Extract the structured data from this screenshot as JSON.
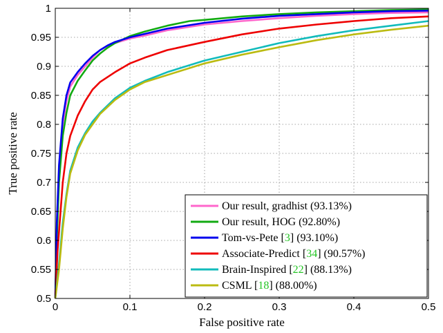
{
  "chart_data": {
    "type": "line",
    "xlabel": "False positive rate",
    "ylabel": "True positive rate",
    "xlim": [
      0,
      0.5
    ],
    "ylim": [
      0.5,
      1
    ],
    "x_ticks": [
      "0",
      "0.1",
      "0.2",
      "0.3",
      "0.4",
      "0.5"
    ],
    "y_ticks": [
      "0.5",
      "0.55",
      "0.6",
      "0.65",
      "0.7",
      "0.75",
      "0.8",
      "0.85",
      "0.9",
      "0.95",
      "1"
    ],
    "grid": true,
    "legend_position": "bottom-right",
    "series": [
      {
        "legend": {
          "pre": "Our result, gradhist",
          "ref": "",
          "post": " (93.13%)"
        },
        "color": "#ff66cc",
        "points": [
          [
            0,
            0.5
          ],
          [
            0.002,
            0.62
          ],
          [
            0.005,
            0.72
          ],
          [
            0.01,
            0.8
          ],
          [
            0.015,
            0.84
          ],
          [
            0.02,
            0.865
          ],
          [
            0.03,
            0.885
          ],
          [
            0.04,
            0.9
          ],
          [
            0.05,
            0.915
          ],
          [
            0.06,
            0.928
          ],
          [
            0.07,
            0.935
          ],
          [
            0.08,
            0.94
          ],
          [
            0.1,
            0.948
          ],
          [
            0.12,
            0.953
          ],
          [
            0.15,
            0.962
          ],
          [
            0.2,
            0.972
          ],
          [
            0.25,
            0.978
          ],
          [
            0.3,
            0.983
          ],
          [
            0.35,
            0.987
          ],
          [
            0.4,
            0.99
          ],
          [
            0.45,
            0.992
          ],
          [
            0.5,
            0.993
          ]
        ]
      },
      {
        "legend": {
          "pre": "Our result, HOG",
          "ref": "",
          "post": " (92.80%)"
        },
        "color": "#11aa11",
        "points": [
          [
            0,
            0.5
          ],
          [
            0.002,
            0.6
          ],
          [
            0.005,
            0.7
          ],
          [
            0.01,
            0.78
          ],
          [
            0.015,
            0.82
          ],
          [
            0.02,
            0.85
          ],
          [
            0.03,
            0.875
          ],
          [
            0.04,
            0.893
          ],
          [
            0.05,
            0.91
          ],
          [
            0.06,
            0.922
          ],
          [
            0.07,
            0.932
          ],
          [
            0.08,
            0.94
          ],
          [
            0.1,
            0.952
          ],
          [
            0.12,
            0.96
          ],
          [
            0.15,
            0.97
          ],
          [
            0.18,
            0.978
          ],
          [
            0.2,
            0.98
          ],
          [
            0.25,
            0.986
          ],
          [
            0.3,
            0.99
          ],
          [
            0.35,
            0.993
          ],
          [
            0.4,
            0.995
          ],
          [
            0.45,
            0.997
          ],
          [
            0.5,
            0.998
          ]
        ]
      },
      {
        "legend": {
          "pre": "Tom-vs-Pete ",
          "ref": "3",
          "post": " (93.10%)"
        },
        "color": "#0000ee",
        "points": [
          [
            0,
            0.5
          ],
          [
            0.002,
            0.63
          ],
          [
            0.005,
            0.73
          ],
          [
            0.01,
            0.81
          ],
          [
            0.015,
            0.85
          ],
          [
            0.02,
            0.872
          ],
          [
            0.03,
            0.89
          ],
          [
            0.04,
            0.905
          ],
          [
            0.05,
            0.918
          ],
          [
            0.06,
            0.928
          ],
          [
            0.07,
            0.936
          ],
          [
            0.08,
            0.942
          ],
          [
            0.1,
            0.95
          ],
          [
            0.12,
            0.956
          ],
          [
            0.15,
            0.965
          ],
          [
            0.2,
            0.975
          ],
          [
            0.25,
            0.982
          ],
          [
            0.3,
            0.987
          ],
          [
            0.35,
            0.99
          ],
          [
            0.4,
            0.993
          ],
          [
            0.45,
            0.995
          ],
          [
            0.5,
            0.996
          ]
        ]
      },
      {
        "legend": {
          "pre": "Associate-Predict ",
          "ref": "34",
          "post": " (90.57%)"
        },
        "color": "#ee0000",
        "points": [
          [
            0,
            0.5
          ],
          [
            0.003,
            0.58
          ],
          [
            0.007,
            0.65
          ],
          [
            0.01,
            0.7
          ],
          [
            0.015,
            0.75
          ],
          [
            0.02,
            0.78
          ],
          [
            0.03,
            0.815
          ],
          [
            0.04,
            0.84
          ],
          [
            0.05,
            0.86
          ],
          [
            0.06,
            0.873
          ],
          [
            0.08,
            0.89
          ],
          [
            0.1,
            0.905
          ],
          [
            0.12,
            0.915
          ],
          [
            0.15,
            0.928
          ],
          [
            0.2,
            0.942
          ],
          [
            0.25,
            0.955
          ],
          [
            0.3,
            0.965
          ],
          [
            0.35,
            0.972
          ],
          [
            0.4,
            0.978
          ],
          [
            0.45,
            0.983
          ],
          [
            0.5,
            0.986
          ]
        ]
      },
      {
        "legend": {
          "pre": "Brain-Inspired ",
          "ref": "22",
          "post": " (88.13%)"
        },
        "color": "#11bbbb",
        "points": [
          [
            0,
            0.5
          ],
          [
            0.005,
            0.56
          ],
          [
            0.01,
            0.63
          ],
          [
            0.015,
            0.68
          ],
          [
            0.02,
            0.72
          ],
          [
            0.03,
            0.76
          ],
          [
            0.04,
            0.785
          ],
          [
            0.05,
            0.805
          ],
          [
            0.06,
            0.82
          ],
          [
            0.08,
            0.845
          ],
          [
            0.1,
            0.863
          ],
          [
            0.12,
            0.875
          ],
          [
            0.15,
            0.89
          ],
          [
            0.2,
            0.91
          ],
          [
            0.25,
            0.925
          ],
          [
            0.3,
            0.94
          ],
          [
            0.35,
            0.952
          ],
          [
            0.4,
            0.962
          ],
          [
            0.45,
            0.97
          ],
          [
            0.5,
            0.978
          ]
        ]
      },
      {
        "legend": {
          "pre": "CSML ",
          "ref": "18",
          "post": " (88.00%)"
        },
        "color": "#bbbb11",
        "points": [
          [
            0,
            0.5
          ],
          [
            0.005,
            0.55
          ],
          [
            0.01,
            0.62
          ],
          [
            0.015,
            0.675
          ],
          [
            0.02,
            0.715
          ],
          [
            0.03,
            0.755
          ],
          [
            0.04,
            0.782
          ],
          [
            0.05,
            0.8
          ],
          [
            0.06,
            0.818
          ],
          [
            0.08,
            0.842
          ],
          [
            0.1,
            0.86
          ],
          [
            0.12,
            0.873
          ],
          [
            0.15,
            0.885
          ],
          [
            0.2,
            0.905
          ],
          [
            0.25,
            0.92
          ],
          [
            0.3,
            0.933
          ],
          [
            0.35,
            0.945
          ],
          [
            0.4,
            0.955
          ],
          [
            0.45,
            0.963
          ],
          [
            0.5,
            0.97
          ]
        ]
      }
    ]
  }
}
